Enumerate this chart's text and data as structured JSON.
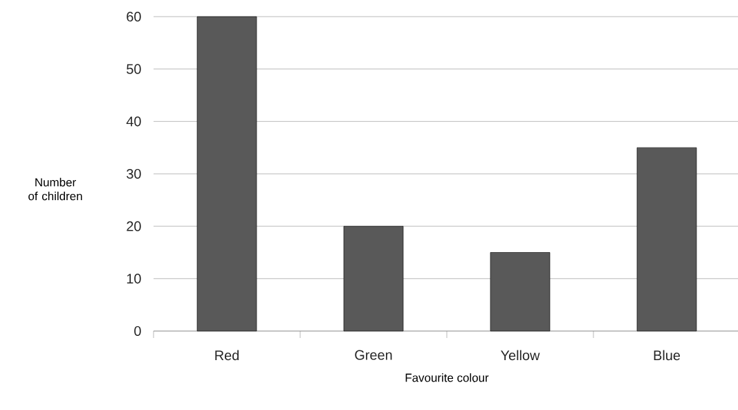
{
  "chart_data": {
    "type": "bar",
    "xlabel": "Favourite colour",
    "ylabel": "Number of children",
    "categories": [
      "Red",
      "Green",
      "Yellow",
      "Blue"
    ],
    "values": [
      60,
      20,
      15,
      35
    ],
    "color": "#595959",
    "ylim": [
      0,
      60
    ],
    "yticks": [
      0,
      10,
      20,
      30,
      40,
      50,
      60
    ],
    "grid": "y"
  }
}
